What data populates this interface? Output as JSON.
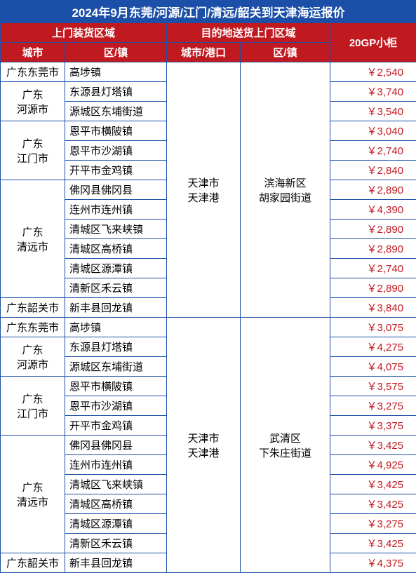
{
  "title": "2024年9月东莞/河源/江门/清远/韶关到天津海运报价",
  "header": {
    "pickup": "上门装货区域",
    "delivery": "目的地送货上门区域",
    "price": "20GP小柜",
    "city": "城市",
    "zone": "区/镇",
    "destCity": "城市/港口",
    "destZone": "区/镇"
  },
  "dest": {
    "port": "天津市\n天津港",
    "area1": "滨海新区\n胡家园街道",
    "area2": "武清区\n下朱庄街道"
  },
  "groups": [
    {
      "destArea": "area1",
      "cities": [
        {
          "name": "广东东莞市",
          "zones": [
            [
              "高埗镇",
              "￥2,540"
            ]
          ]
        },
        {
          "name": "广东\n河源市",
          "zones": [
            [
              "东源县灯塔镇",
              "￥3,740"
            ],
            [
              "源城区东埔街道",
              "￥3,540"
            ]
          ]
        },
        {
          "name": "广东\n江门市",
          "zones": [
            [
              "恩平市横陂镇",
              "￥3,040"
            ],
            [
              "恩平市沙湖镇",
              "￥2,740"
            ],
            [
              "开平市金鸡镇",
              "￥2,840"
            ]
          ]
        },
        {
          "name": "广东\n清远市",
          "zones": [
            [
              "佛冈县佛冈县",
              "￥2,890"
            ],
            [
              "连州市连州镇",
              "￥4,390"
            ],
            [
              "清城区飞来峡镇",
              "￥2,890"
            ],
            [
              "清城区高桥镇",
              "￥2,890"
            ],
            [
              "清城区源潭镇",
              "￥2,740"
            ],
            [
              "清新区禾云镇",
              "￥2,890"
            ]
          ]
        },
        {
          "name": "广东韶关市",
          "zones": [
            [
              "新丰县回龙镇",
              "￥3,840"
            ]
          ]
        }
      ]
    },
    {
      "destArea": "area2",
      "cities": [
        {
          "name": "广东东莞市",
          "zones": [
            [
              "高埗镇",
              "￥3,075"
            ]
          ]
        },
        {
          "name": "广东\n河源市",
          "zones": [
            [
              "东源县灯塔镇",
              "￥4,275"
            ],
            [
              "源城区东埔街道",
              "￥4,075"
            ]
          ]
        },
        {
          "name": "广东\n江门市",
          "zones": [
            [
              "恩平市横陂镇",
              "￥3,575"
            ],
            [
              "恩平市沙湖镇",
              "￥3,275"
            ],
            [
              "开平市金鸡镇",
              "￥3,375"
            ]
          ]
        },
        {
          "name": "广东\n清远市",
          "zones": [
            [
              "佛冈县佛冈县",
              "￥3,425"
            ],
            [
              "连州市连州镇",
              "￥4,925"
            ],
            [
              "清城区飞来峡镇",
              "￥3,425"
            ],
            [
              "清城区高桥镇",
              "￥3,425"
            ],
            [
              "清城区源潭镇",
              "￥3,275"
            ],
            [
              "清新区禾云镇",
              "￥3,425"
            ]
          ]
        },
        {
          "name": "广东韶关市",
          "zones": [
            [
              "新丰县回龙镇",
              "￥4,375"
            ]
          ]
        }
      ]
    }
  ],
  "colors": {
    "titleBg": "#1b4fa8",
    "headerBg": "#c11920",
    "priceColor": "#c11920",
    "border": "#1b4fa8"
  }
}
